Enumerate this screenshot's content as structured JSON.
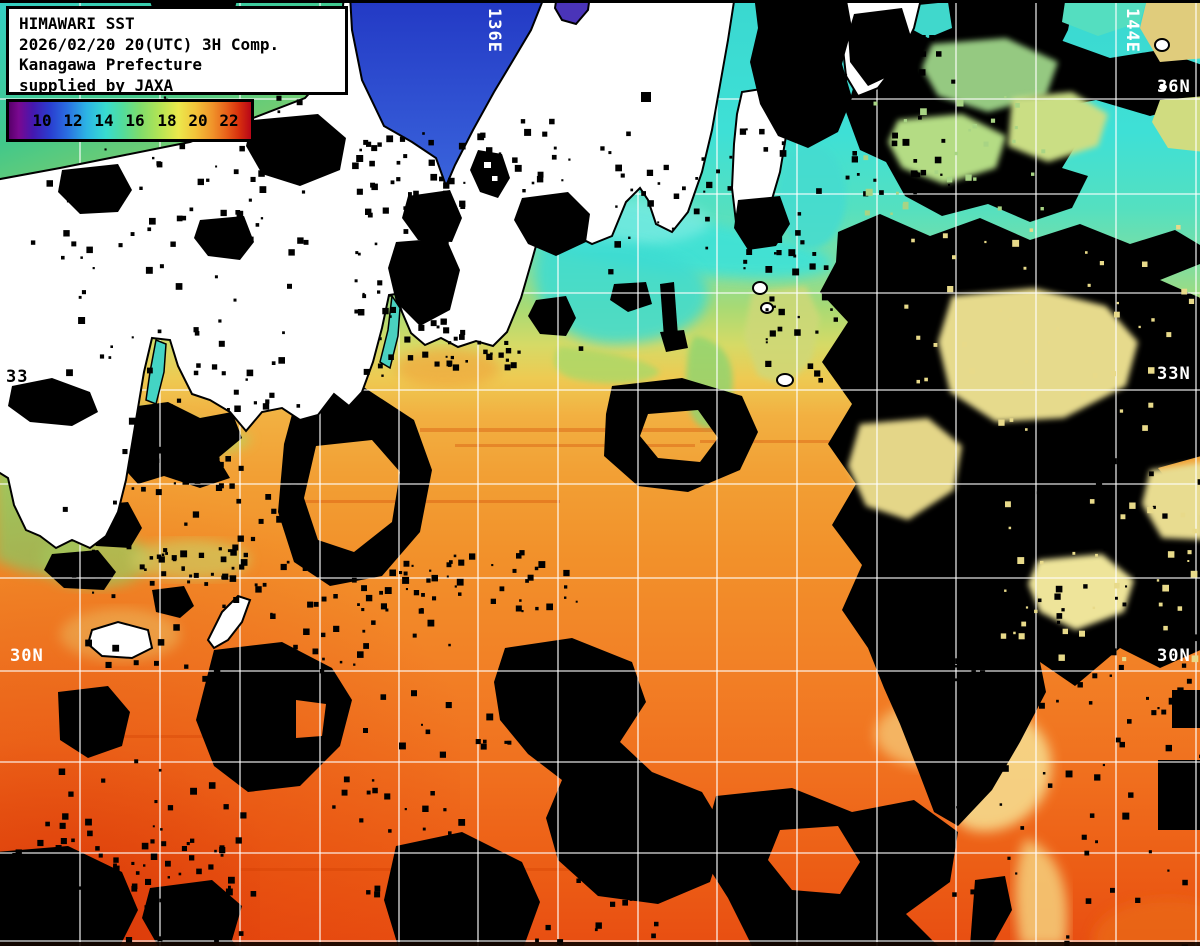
{
  "title_box": {
    "line1": "HIMAWARI SST",
    "line2": "2026/02/20 20(UTC) 3H Comp.",
    "line3": "Kanagawa Prefecture",
    "line4": "supplied by JAXA"
  },
  "colorbar": {
    "ticks": [
      "10",
      "12",
      "14",
      "16",
      "18",
      "20",
      "22"
    ],
    "gradient_colors": [
      "#58006a",
      "#7a0890",
      "#4418b0",
      "#2a3ed0",
      "#2a6ee0",
      "#2cb4e4",
      "#38dcd0",
      "#52dc9c",
      "#7edc6c",
      "#b2e455",
      "#ece84c",
      "#f2c43a",
      "#f0942a",
      "#e8601a",
      "#d8300e",
      "#b80618"
    ]
  },
  "map_labels": {
    "lon_136e": "136E",
    "lon_144e": "144E",
    "lat_36n_right": "36N",
    "lat_33n_right": "33N",
    "lat_30n_right": "30N",
    "lat_33_left": "33",
    "lat_30n_left": "30N"
  },
  "graticule": {
    "lon_lines_x": [
      80,
      160,
      240,
      320,
      399,
      478,
      558,
      638,
      717,
      797,
      877,
      956,
      1036,
      1116,
      1196
    ],
    "lat_lines_y": [
      99,
      194,
      293,
      390,
      484,
      578,
      671,
      762,
      853,
      941
    ]
  },
  "colors": {
    "land": "#ffffff",
    "cloud_mask": "#000000",
    "graticule": "#ffffff",
    "cold_water": "#38dcd0",
    "mid_water": "#b2e455",
    "warm_water": "#f28126",
    "hot_water": "#e84e12",
    "label_text": "#ffffff"
  }
}
